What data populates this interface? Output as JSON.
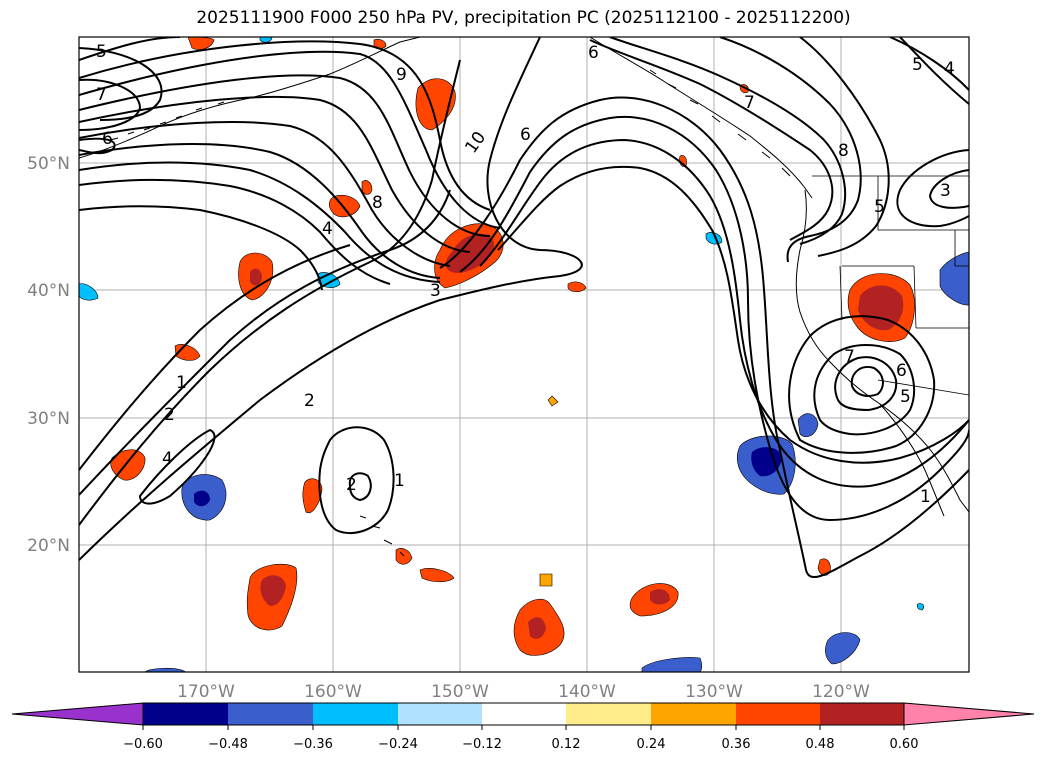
{
  "title": "2025111900 F000 250 hPa PV, precipitation PC (2025112100 - 2025112200)",
  "map": {
    "lon_ticks": [
      "170°W",
      "160°W",
      "150°W",
      "140°W",
      "130°W",
      "120°W"
    ],
    "lat_ticks": [
      "50°N",
      "40°N",
      "30°N",
      "20°N"
    ],
    "grid": true
  },
  "colorbar": {
    "ticks": [
      "−0.60",
      "−0.48",
      "−0.36",
      "−0.24",
      "−0.12",
      "0.12",
      "0.24",
      "0.36",
      "0.48",
      "0.60"
    ],
    "colors": [
      "#9932cc",
      "#00008b",
      "#3a5fcd",
      "#00bfff",
      "#b0e2ff",
      "#ffffff",
      "#ffec8b",
      "#ffa500",
      "#ff4500",
      "#b22222",
      "#ff82ab"
    ],
    "extend": "both"
  },
  "contour_labels": [
    "5",
    "7",
    "6",
    "9",
    "10",
    "6",
    "8",
    "4",
    "3",
    "1",
    "2",
    "2",
    "4",
    "2",
    "1",
    "6",
    "7",
    "8",
    "5",
    "3",
    "4",
    "5",
    "7",
    "6",
    "5",
    "1"
  ]
}
